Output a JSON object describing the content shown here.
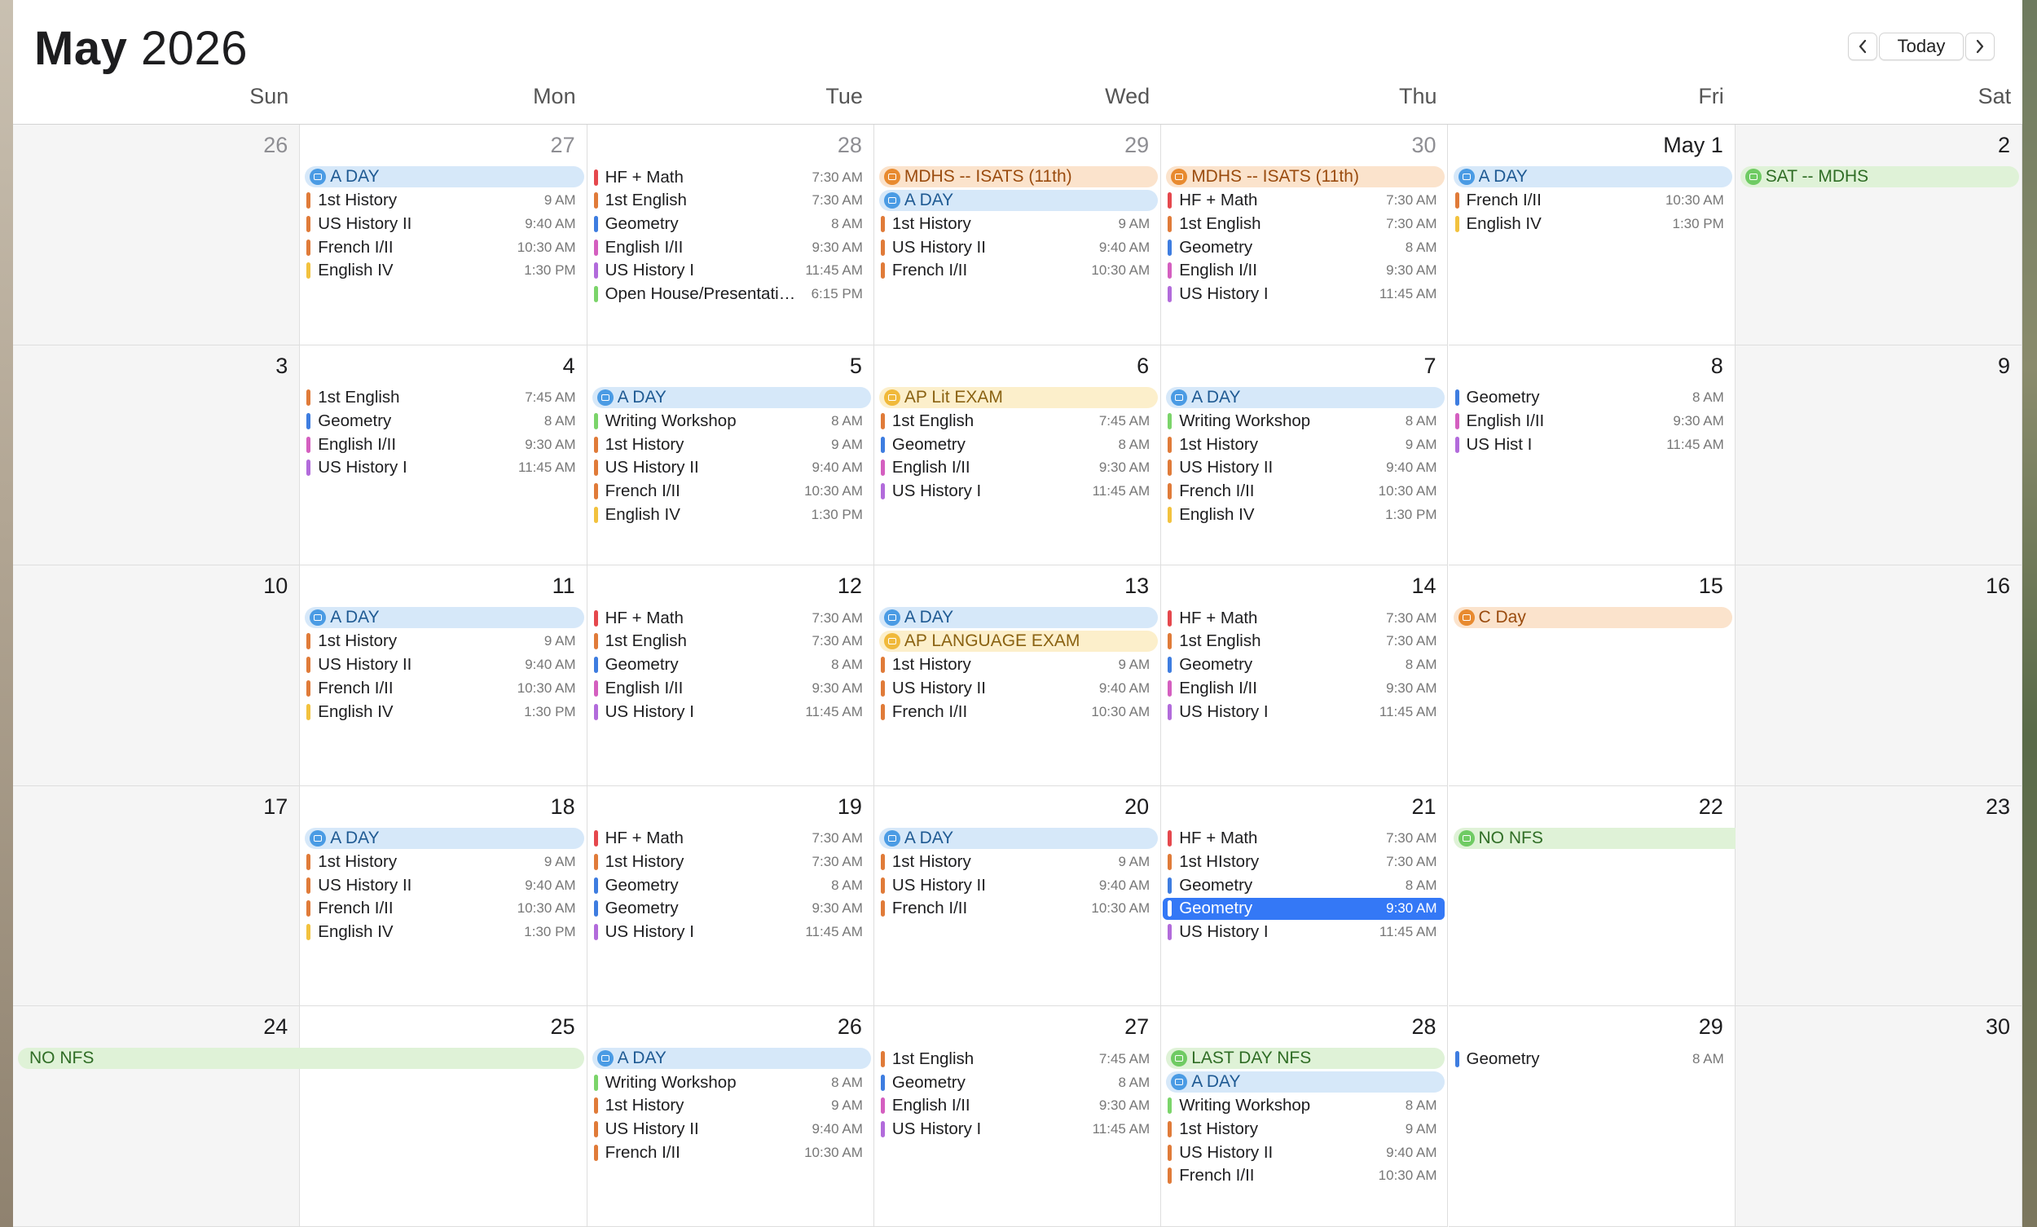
{
  "header": {
    "month": "May",
    "year": "2026",
    "today_label": "Today",
    "prev_icon": "chevron-left-icon",
    "next_icon": "chevron-right-icon"
  },
  "weekdays": [
    "Sun",
    "Mon",
    "Tue",
    "Wed",
    "Thu",
    "Fri",
    "Sat"
  ],
  "colors": {
    "red": "#e5484d",
    "orange": "#e07b39",
    "blue": "#3e7de0",
    "pink": "#d45fc0",
    "purple": "#b26bdb",
    "yellow": "#f2c23e",
    "green": "#7bd46a",
    "aday_bg": "#d6e8f9",
    "aday_icon": "#4a9be4",
    "aday_text": "#1f5a93",
    "orange_bg": "#fbe3cc",
    "orange_icon": "#e88a2f",
    "orange_text": "#9a4b0e",
    "yellow_bg": "#fcefcb",
    "yellow_icon": "#f0b93a",
    "yellow_text": "#8a6212",
    "green_bg": "#dff2d7",
    "green_icon": "#6fcb63",
    "green_text": "#2f6d25"
  },
  "weeks": [
    [
      {
        "day": "26",
        "dim": true,
        "events": []
      },
      {
        "day": "27",
        "dim": true,
        "events": [
          {
            "type": "allday",
            "style": "aday",
            "label": "A DAY"
          },
          {
            "name": "1st History",
            "time": "9 AM",
            "color": "orange"
          },
          {
            "name": "US History II",
            "time": "9:40 AM",
            "color": "orange"
          },
          {
            "name": "French I/II",
            "time": "10:30 AM",
            "color": "orange"
          },
          {
            "name": "English IV",
            "time": "1:30 PM",
            "color": "yellow"
          }
        ]
      },
      {
        "day": "28",
        "dim": true,
        "events": [
          {
            "name": "HF + Math",
            "time": "7:30 AM",
            "color": "red"
          },
          {
            "name": "1st English",
            "time": "7:30 AM",
            "color": "orange"
          },
          {
            "name": "Geometry",
            "time": "8 AM",
            "color": "blue"
          },
          {
            "name": "English I/II",
            "time": "9:30 AM",
            "color": "pink"
          },
          {
            "name": "US History I",
            "time": "11:45 AM",
            "color": "purple"
          },
          {
            "name": "Open House/Presentati…",
            "time": "6:15 PM",
            "color": "green"
          }
        ]
      },
      {
        "day": "29",
        "dim": true,
        "events": [
          {
            "type": "allday",
            "style": "orange",
            "label": "MDHS -- ISATS (11th)"
          },
          {
            "type": "allday",
            "style": "aday",
            "label": "A DAY"
          },
          {
            "name": "1st History",
            "time": "9 AM",
            "color": "orange"
          },
          {
            "name": "US History II",
            "time": "9:40 AM",
            "color": "orange"
          },
          {
            "name": "French I/II",
            "time": "10:30 AM",
            "color": "orange"
          }
        ]
      },
      {
        "day": "30",
        "dim": true,
        "events": [
          {
            "type": "allday",
            "style": "orange",
            "label": "MDHS -- ISATS (11th)"
          },
          {
            "name": "HF + Math",
            "time": "7:30 AM",
            "color": "red"
          },
          {
            "name": "1st English",
            "time": "7:30 AM",
            "color": "orange"
          },
          {
            "name": "Geometry",
            "time": "8 AM",
            "color": "blue"
          },
          {
            "name": "English I/II",
            "time": "9:30 AM",
            "color": "pink"
          },
          {
            "name": "US History I",
            "time": "11:45 AM",
            "color": "purple"
          }
        ]
      },
      {
        "day": "May 1",
        "dim": false,
        "events": [
          {
            "type": "allday",
            "style": "aday",
            "label": "A DAY"
          },
          {
            "name": "French I/II",
            "time": "10:30 AM",
            "color": "orange"
          },
          {
            "name": "English IV",
            "time": "1:30 PM",
            "color": "yellow"
          }
        ]
      },
      {
        "day": "2",
        "dim": false,
        "events": [
          {
            "type": "allday",
            "style": "green",
            "label": "SAT -- MDHS"
          }
        ]
      }
    ],
    [
      {
        "day": "3",
        "dim": false,
        "events": []
      },
      {
        "day": "4",
        "dim": false,
        "events": [
          {
            "name": "1st English",
            "time": "7:45 AM",
            "color": "orange"
          },
          {
            "name": "Geometry",
            "time": "8 AM",
            "color": "blue"
          },
          {
            "name": "English I/II",
            "time": "9:30 AM",
            "color": "pink"
          },
          {
            "name": "US History I",
            "time": "11:45 AM",
            "color": "purple"
          }
        ]
      },
      {
        "day": "5",
        "dim": false,
        "events": [
          {
            "type": "allday",
            "style": "aday",
            "label": "A DAY"
          },
          {
            "name": "Writing Workshop",
            "time": "8 AM",
            "color": "green"
          },
          {
            "name": "1st History",
            "time": "9 AM",
            "color": "orange"
          },
          {
            "name": "US History II",
            "time": "9:40 AM",
            "color": "orange"
          },
          {
            "name": "French I/II",
            "time": "10:30 AM",
            "color": "orange"
          },
          {
            "name": "English IV",
            "time": "1:30 PM",
            "color": "yellow"
          }
        ]
      },
      {
        "day": "6",
        "dim": false,
        "events": [
          {
            "type": "allday",
            "style": "yellow",
            "label": "AP Lit EXAM"
          },
          {
            "name": "1st English",
            "time": "7:45 AM",
            "color": "orange"
          },
          {
            "name": "Geometry",
            "time": "8 AM",
            "color": "blue"
          },
          {
            "name": "English I/II",
            "time": "9:30 AM",
            "color": "pink"
          },
          {
            "name": "US History I",
            "time": "11:45 AM",
            "color": "purple"
          }
        ]
      },
      {
        "day": "7",
        "dim": false,
        "events": [
          {
            "type": "allday",
            "style": "aday",
            "label": "A DAY"
          },
          {
            "name": "Writing Workshop",
            "time": "8 AM",
            "color": "green"
          },
          {
            "name": "1st History",
            "time": "9 AM",
            "color": "orange"
          },
          {
            "name": "US History II",
            "time": "9:40 AM",
            "color": "orange"
          },
          {
            "name": "French I/II",
            "time": "10:30 AM",
            "color": "orange"
          },
          {
            "name": "English IV",
            "time": "1:30 PM",
            "color": "yellow"
          }
        ]
      },
      {
        "day": "8",
        "dim": false,
        "events": [
          {
            "name": "Geometry",
            "time": "8 AM",
            "color": "blue"
          },
          {
            "name": "English I/II",
            "time": "9:30 AM",
            "color": "pink"
          },
          {
            "name": "US Hist I",
            "time": "11:45 AM",
            "color": "purple"
          }
        ]
      },
      {
        "day": "9",
        "dim": false,
        "events": []
      }
    ],
    [
      {
        "day": "10",
        "dim": false,
        "events": []
      },
      {
        "day": "11",
        "dim": false,
        "events": [
          {
            "type": "allday",
            "style": "aday",
            "label": "A DAY"
          },
          {
            "name": "1st History",
            "time": "9 AM",
            "color": "orange"
          },
          {
            "name": "US History II",
            "time": "9:40 AM",
            "color": "orange"
          },
          {
            "name": "French I/II",
            "time": "10:30 AM",
            "color": "orange"
          },
          {
            "name": "English IV",
            "time": "1:30 PM",
            "color": "yellow"
          }
        ]
      },
      {
        "day": "12",
        "dim": false,
        "events": [
          {
            "name": "HF + Math",
            "time": "7:30 AM",
            "color": "red"
          },
          {
            "name": "1st English",
            "time": "7:30 AM",
            "color": "orange"
          },
          {
            "name": "Geometry",
            "time": "8 AM",
            "color": "blue"
          },
          {
            "name": "English I/II",
            "time": "9:30 AM",
            "color": "pink"
          },
          {
            "name": "US History I",
            "time": "11:45 AM",
            "color": "purple"
          }
        ]
      },
      {
        "day": "13",
        "dim": false,
        "events": [
          {
            "type": "allday",
            "style": "aday",
            "label": "A DAY"
          },
          {
            "type": "allday",
            "style": "yellow",
            "label": "AP LANGUAGE EXAM"
          },
          {
            "name": "1st History",
            "time": "9 AM",
            "color": "orange"
          },
          {
            "name": "US History II",
            "time": "9:40 AM",
            "color": "orange"
          },
          {
            "name": "French I/II",
            "time": "10:30 AM",
            "color": "orange"
          }
        ]
      },
      {
        "day": "14",
        "dim": false,
        "events": [
          {
            "name": "HF + Math",
            "time": "7:30 AM",
            "color": "red"
          },
          {
            "name": "1st English",
            "time": "7:30 AM",
            "color": "orange"
          },
          {
            "name": "Geometry",
            "time": "8 AM",
            "color": "blue"
          },
          {
            "name": "English I/II",
            "time": "9:30 AM",
            "color": "pink"
          },
          {
            "name": "US History I",
            "time": "11:45 AM",
            "color": "purple"
          }
        ]
      },
      {
        "day": "15",
        "dim": false,
        "events": [
          {
            "type": "allday",
            "style": "orange",
            "label": "C Day"
          }
        ]
      },
      {
        "day": "16",
        "dim": false,
        "events": []
      }
    ],
    [
      {
        "day": "17",
        "dim": false,
        "events": []
      },
      {
        "day": "18",
        "dim": false,
        "events": [
          {
            "type": "allday",
            "style": "aday",
            "label": "A DAY"
          },
          {
            "name": "1st History",
            "time": "9 AM",
            "color": "orange"
          },
          {
            "name": "US History II",
            "time": "9:40 AM",
            "color": "orange"
          },
          {
            "name": "French I/II",
            "time": "10:30 AM",
            "color": "orange"
          },
          {
            "name": "English IV",
            "time": "1:30 PM",
            "color": "yellow"
          }
        ]
      },
      {
        "day": "19",
        "dim": false,
        "events": [
          {
            "name": "HF + Math",
            "time": "7:30 AM",
            "color": "red"
          },
          {
            "name": "1st History",
            "time": "7:30 AM",
            "color": "orange"
          },
          {
            "name": "Geometry",
            "time": "8 AM",
            "color": "blue"
          },
          {
            "name": "Geometry",
            "time": "9:30 AM",
            "color": "blue"
          },
          {
            "name": "US History I",
            "time": "11:45 AM",
            "color": "purple"
          }
        ]
      },
      {
        "day": "20",
        "dim": false,
        "events": [
          {
            "type": "allday",
            "style": "aday",
            "label": "A DAY"
          },
          {
            "name": "1st History",
            "time": "9 AM",
            "color": "orange"
          },
          {
            "name": "US History II",
            "time": "9:40 AM",
            "color": "orange"
          },
          {
            "name": "French I/II",
            "time": "10:30 AM",
            "color": "orange"
          }
        ]
      },
      {
        "day": "21",
        "dim": false,
        "events": [
          {
            "name": "HF + Math",
            "time": "7:30 AM",
            "color": "red"
          },
          {
            "name": "1st HIstory",
            "time": "7:30 AM",
            "color": "orange"
          },
          {
            "name": "Geometry",
            "time": "8 AM",
            "color": "blue"
          },
          {
            "name": "Geometry",
            "time": "9:30 AM",
            "color": "blue",
            "selected": true
          },
          {
            "name": "US History I",
            "time": "11:45 AM",
            "color": "purple"
          }
        ]
      },
      {
        "day": "22",
        "dim": false,
        "events": [
          {
            "type": "allday",
            "style": "green",
            "label": "NO NFS",
            "span": 2
          }
        ]
      },
      {
        "day": "23",
        "dim": false,
        "events": []
      }
    ],
    [
      {
        "day": "24",
        "dim": false,
        "events": [
          {
            "type": "allday",
            "style": "green",
            "label": "NO NFS",
            "span": 2,
            "noicon": true
          }
        ]
      },
      {
        "day": "25",
        "dim": false,
        "events": []
      },
      {
        "day": "26",
        "dim": false,
        "events": [
          {
            "type": "allday",
            "style": "aday",
            "label": "A DAY"
          },
          {
            "name": "Writing Workshop",
            "time": "8 AM",
            "color": "green"
          },
          {
            "name": "1st History",
            "time": "9 AM",
            "color": "orange"
          },
          {
            "name": "US History II",
            "time": "9:40 AM",
            "color": "orange"
          },
          {
            "name": "French I/II",
            "time": "10:30 AM",
            "color": "orange"
          }
        ]
      },
      {
        "day": "27",
        "dim": false,
        "events": [
          {
            "name": "1st English",
            "time": "7:45 AM",
            "color": "orange"
          },
          {
            "name": "Geometry",
            "time": "8 AM",
            "color": "blue"
          },
          {
            "name": "English I/II",
            "time": "9:30 AM",
            "color": "pink"
          },
          {
            "name": "US History I",
            "time": "11:45 AM",
            "color": "purple"
          }
        ]
      },
      {
        "day": "28",
        "dim": false,
        "events": [
          {
            "type": "allday",
            "style": "green",
            "label": "LAST DAY NFS"
          },
          {
            "type": "allday",
            "style": "aday",
            "label": "A DAY"
          },
          {
            "name": "Writing Workshop",
            "time": "8 AM",
            "color": "green"
          },
          {
            "name": "1st History",
            "time": "9 AM",
            "color": "orange"
          },
          {
            "name": "US History II",
            "time": "9:40 AM",
            "color": "orange"
          },
          {
            "name": "French I/II",
            "time": "10:30 AM",
            "color": "orange"
          }
        ]
      },
      {
        "day": "29",
        "dim": false,
        "events": [
          {
            "name": "Geometry",
            "time": "8 AM",
            "color": "blue"
          }
        ]
      },
      {
        "day": "30",
        "dim": false,
        "events": []
      }
    ]
  ]
}
